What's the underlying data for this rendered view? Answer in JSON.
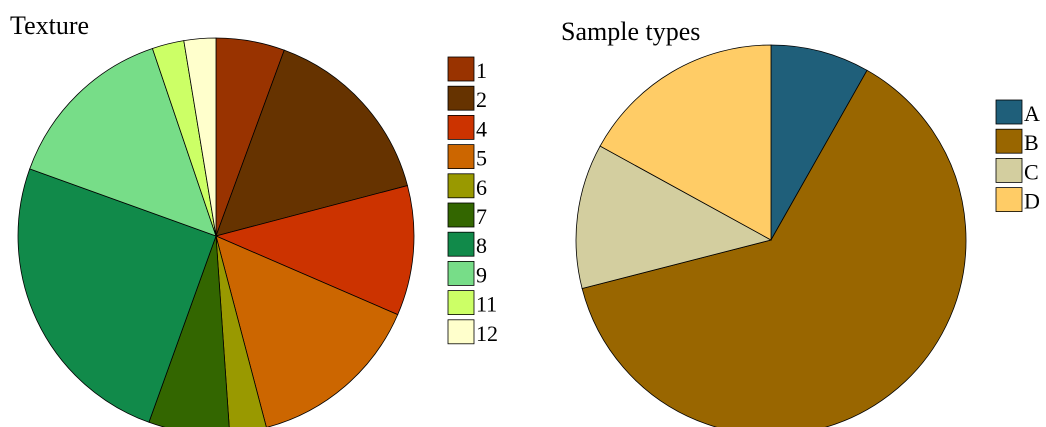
{
  "chart_data": [
    {
      "type": "pie",
      "title": "Texture",
      "start": "top",
      "direction": "clockwise",
      "slices": [
        {
          "label": "1",
          "value": 5.6,
          "color": "#993300"
        },
        {
          "label": "2",
          "value": 15.3,
          "color": "#663300"
        },
        {
          "label": "4",
          "value": 10.6,
          "color": "#CC3300"
        },
        {
          "label": "5",
          "value": 14.4,
          "color": "#CC6600"
        },
        {
          "label": "6",
          "value": 3.0,
          "color": "#999900"
        },
        {
          "label": "7",
          "value": 6.6,
          "color": "#336600"
        },
        {
          "label": "8",
          "value": 25.0,
          "color": "#118A4A"
        },
        {
          "label": "9",
          "value": 14.3,
          "color": "#77DD88"
        },
        {
          "label": "11",
          "value": 2.6,
          "color": "#CCFF66"
        },
        {
          "label": "12",
          "value": 2.6,
          "color": "#FFFFCC"
        }
      ],
      "legend_position": "right"
    },
    {
      "type": "pie",
      "title": "Sample types",
      "start": "top",
      "direction": "clockwise",
      "slices": [
        {
          "label": "A",
          "value": 8.2,
          "color": "#1F5F7A"
        },
        {
          "label": "B",
          "value": 62.8,
          "color": "#996600"
        },
        {
          "label": "C",
          "value": 12.0,
          "color": "#D3CE9F"
        },
        {
          "label": "D",
          "value": 17.0,
          "color": "#FFCC66"
        }
      ],
      "legend_position": "right"
    }
  ]
}
